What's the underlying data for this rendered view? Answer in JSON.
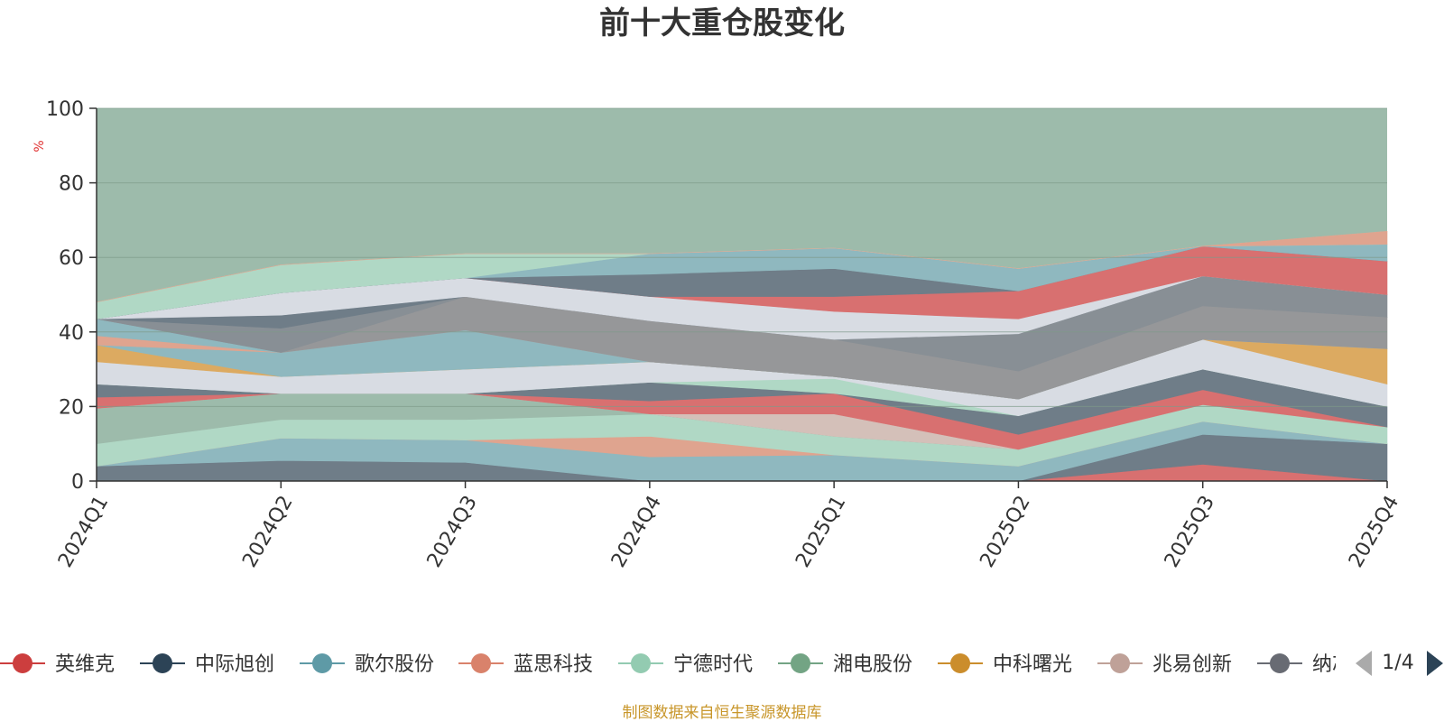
{
  "colors": {
    "background_band": "#9dbbab",
    "grid": "#7f9a8a",
    "axis": "#333333",
    "unit": "#e03030",
    "source": "#c8962a"
  },
  "pager": {
    "text": "1/4",
    "prev_icon": "triangle-left-icon",
    "next_icon": "triangle-right-icon"
  },
  "source_note": "制图数据来自恒生聚源数据库",
  "chart_data": {
    "type": "area",
    "title": "前十大重仓股变化",
    "ylabel": "%",
    "ylim": [
      0,
      100
    ],
    "yticks": [
      0,
      20,
      40,
      60,
      80,
      100
    ],
    "grid": true,
    "legend_position": "bottom",
    "categories": [
      "2024Q1",
      "2024Q2",
      "2024Q3",
      "2024Q4",
      "2025Q1",
      "2025Q2",
      "2025Q3",
      "2025Q4"
    ],
    "boundaries": [
      [
        0,
        0,
        0,
        0,
        0,
        0,
        0,
        0
      ],
      [
        0,
        0,
        0,
        0,
        0,
        0,
        4.5,
        0
      ],
      [
        4,
        5.5,
        5,
        0,
        0,
        0,
        12.5,
        10
      ],
      [
        4,
        11.5,
        11,
        6.5,
        7,
        4,
        16,
        10
      ],
      [
        4,
        11.5,
        11,
        12,
        7,
        4,
        16,
        10
      ],
      [
        10,
        16.5,
        16.5,
        18,
        12,
        8.5,
        20.5,
        14.5
      ],
      [
        19.5,
        23.5,
        23.5,
        18,
        12,
        8.5,
        20.5,
        14.5
      ],
      [
        19.5,
        23.5,
        23.5,
        18,
        12,
        8.5,
        20.5,
        14.5
      ],
      [
        19.5,
        23.5,
        23.5,
        18,
        18,
        8.5,
        20.5,
        14.5
      ],
      [
        22.5,
        23.5,
        23.5,
        21.5,
        23.5,
        12.5,
        24.5,
        14.5
      ],
      [
        26,
        23.5,
        23.5,
        26.5,
        23.5,
        17.5,
        30,
        20
      ],
      [
        26,
        23.5,
        23.5,
        26.5,
        27.5,
        17.5,
        30,
        20
      ],
      [
        32,
        28,
        30,
        32,
        28,
        22,
        38,
        26
      ],
      [
        36.5,
        28,
        30,
        32,
        28,
        22,
        38,
        35.5
      ],
      [
        36.5,
        34.5,
        40.5,
        32,
        28,
        22,
        38,
        35.5
      ],
      [
        39,
        34.5,
        40.5,
        32,
        28,
        22,
        38,
        35.5
      ],
      [
        43.5,
        34.5,
        40.5,
        32,
        28,
        22,
        38,
        35.5
      ],
      [
        43.5,
        34.5,
        49.5,
        43,
        38,
        29.5,
        47,
        44
      ],
      [
        43.5,
        41,
        49.5,
        43,
        38,
        39.5,
        55,
        50
      ],
      [
        43.5,
        44.5,
        49.5,
        43,
        38,
        39.5,
        55,
        50
      ],
      [
        43.5,
        50.5,
        54.5,
        49.5,
        45.5,
        43.5,
        55,
        50
      ],
      [
        43.5,
        50.5,
        54.5,
        49.5,
        49.5,
        51,
        63,
        59
      ],
      [
        43.5,
        50.5,
        54.5,
        55.5,
        57,
        51,
        63,
        59
      ],
      [
        43.5,
        50.5,
        54.5,
        61,
        62.5,
        57,
        63,
        63.5
      ],
      [
        48,
        58,
        61,
        61,
        62.5,
        57,
        63,
        63.5
      ],
      [
        48,
        58,
        61,
        61,
        62.5,
        57,
        63,
        67
      ]
    ],
    "series": [
      {
        "name": "英维克",
        "color": "#cc3e3e"
      },
      {
        "name": "中际旭创",
        "color": "#2c4356"
      },
      {
        "name": "歌尔股份",
        "color": "#5e9aa6"
      },
      {
        "name": "蓝思科技",
        "color": "#d9826b"
      },
      {
        "name": "宁德时代",
        "color": "#93cbb1"
      },
      {
        "name": "湘电股份",
        "color": "#73a484"
      },
      {
        "name": "中科曙光",
        "color": "#cb8d2c"
      },
      {
        "name": "兆易创新",
        "color": "#bfa198"
      },
      {
        "name": "纳芯微",
        "color": "#686b73"
      }
    ],
    "band_colors": [
      "#d87070",
      "#6f7d88",
      "#8fb8bf",
      "#dfa48f",
      "#b0d8c5",
      "#9dbbab",
      "#9dbbab",
      "#d4c0b9",
      "#d87070",
      "#6f7d88",
      "#b0d8c5",
      "#d8dce3",
      "#dcaa61",
      "#8fb8bf",
      "#dfa48f",
      "#8fb8bf",
      "#969799",
      "#888f95",
      "#6f7d88",
      "#d8dce3",
      "#d87070",
      "#6f7d88",
      "#8fb8bf",
      "#b0d8c5",
      "#dfa48f",
      "#9dbbab"
    ]
  }
}
